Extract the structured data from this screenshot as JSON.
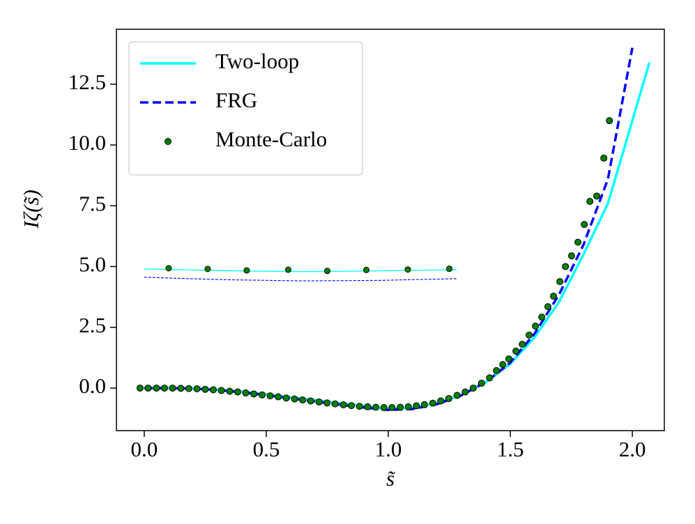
{
  "chart_data": {
    "type": "line",
    "xlabel": "s̃",
    "ylabel": "Iζ(s̃)",
    "xlim": [
      -0.114,
      2.131
    ],
    "ylim": [
      -1.75,
      14.76
    ],
    "xticks": [
      {
        "value": 0,
        "label": "0.0"
      },
      {
        "value": 0.5,
        "label": "0.5"
      },
      {
        "value": 1,
        "label": "1.0"
      },
      {
        "value": 1.5,
        "label": "1.5"
      },
      {
        "value": 2,
        "label": "2.0"
      }
    ],
    "yticks": [
      {
        "value": 0,
        "label": "0.0"
      },
      {
        "value": 2.5,
        "label": "2.5"
      },
      {
        "value": 5,
        "label": "5.0"
      },
      {
        "value": 7.5,
        "label": "7.5"
      },
      {
        "value": 10,
        "label": "10.0"
      },
      {
        "value": 12.5,
        "label": "12.5"
      }
    ],
    "legend": "upper left",
    "series": [
      {
        "name": "Two-loop",
        "color": "#00ffff",
        "style": "solid",
        "x": [
          0,
          0.1,
          0.2,
          0.3,
          0.4,
          0.5,
          0.6,
          0.7,
          0.8,
          0.9,
          1.0,
          1.1,
          1.2,
          1.3,
          1.4,
          1.5,
          1.6,
          1.7,
          1.8,
          1.9,
          2.0,
          2.07
        ],
        "values": [
          0,
          0,
          -0.02,
          -0.07,
          -0.15,
          -0.26,
          -0.38,
          -0.5,
          -0.62,
          -0.74,
          -0.85,
          -0.8,
          -0.62,
          -0.28,
          0.25,
          1.0,
          2.1,
          3.55,
          5.5,
          7.6,
          11.0,
          13.4
        ]
      },
      {
        "name": "FRG",
        "color": "#0000ff",
        "style": "dashed",
        "x": [
          0,
          0.1,
          0.2,
          0.3,
          0.4,
          0.5,
          0.6,
          0.7,
          0.8,
          0.9,
          1.0,
          1.1,
          1.2,
          1.3,
          1.4,
          1.5,
          1.6,
          1.7,
          1.8,
          1.9,
          2.0
        ],
        "values": [
          0,
          0,
          -0.02,
          -0.08,
          -0.17,
          -0.29,
          -0.42,
          -0.55,
          -0.68,
          -0.8,
          -0.9,
          -0.86,
          -0.66,
          -0.3,
          0.25,
          1.05,
          2.25,
          3.85,
          5.9,
          8.6,
          14.0
        ]
      },
      {
        "name": "Monte-Carlo",
        "color": "#008000",
        "style": "markers",
        "x": [
          -0.017,
          0.016,
          0.05,
          0.083,
          0.116,
          0.15,
          0.183,
          0.216,
          0.25,
          0.283,
          0.316,
          0.35,
          0.383,
          0.416,
          0.449,
          0.483,
          0.516,
          0.549,
          0.582,
          0.616,
          0.649,
          0.682,
          0.716,
          0.749,
          0.782,
          0.816,
          0.849,
          0.882,
          0.915,
          0.949,
          0.982,
          1.015,
          1.049,
          1.082,
          1.115,
          1.148,
          1.182,
          1.215,
          1.248,
          1.282,
          1.315,
          1.348,
          1.382,
          1.415,
          1.443,
          1.469,
          1.494,
          1.523,
          1.549,
          1.577,
          1.603,
          1.629,
          1.654,
          1.677,
          1.703,
          1.726,
          1.751,
          1.777,
          1.803,
          1.826,
          1.854,
          1.883,
          1.906
        ],
        "values": [
          0,
          0,
          0,
          0,
          0,
          -0.01,
          -0.02,
          -0.03,
          -0.05,
          -0.07,
          -0.1,
          -0.13,
          -0.16,
          -0.2,
          -0.24,
          -0.28,
          -0.32,
          -0.36,
          -0.41,
          -0.45,
          -0.49,
          -0.53,
          -0.57,
          -0.61,
          -0.65,
          -0.69,
          -0.72,
          -0.75,
          -0.77,
          -0.79,
          -0.8,
          -0.8,
          -0.79,
          -0.77,
          -0.73,
          -0.68,
          -0.62,
          -0.53,
          -0.43,
          -0.3,
          -0.16,
          0.0,
          0.2,
          0.42,
          0.72,
          0.97,
          1.2,
          1.52,
          1.8,
          2.18,
          2.55,
          2.92,
          3.35,
          3.78,
          4.38,
          5.0,
          5.44,
          6.0,
          6.73,
          7.68,
          7.9,
          9.46,
          11.0
        ]
      },
      {
        "color": "#00ffff",
        "style": "thin",
        "x": [
          0,
          0.32,
          0.64,
          0.96,
          1.28
        ],
        "values": [
          4.9,
          4.83,
          4.79,
          4.82,
          4.87
        ]
      },
      {
        "color": "#0000ff",
        "style": "thin-dashed",
        "x": [
          0,
          0.32,
          0.64,
          0.96,
          1.28
        ],
        "values": [
          4.56,
          4.46,
          4.41,
          4.43,
          4.5
        ]
      },
      {
        "color": "#008000",
        "style": "small-markers",
        "x": [
          0.1,
          0.26,
          0.42,
          0.59,
          0.75,
          0.91,
          1.08,
          1.25
        ],
        "values": [
          4.93,
          4.9,
          4.84,
          4.87,
          4.82,
          4.86,
          4.88,
          4.91
        ]
      }
    ]
  }
}
